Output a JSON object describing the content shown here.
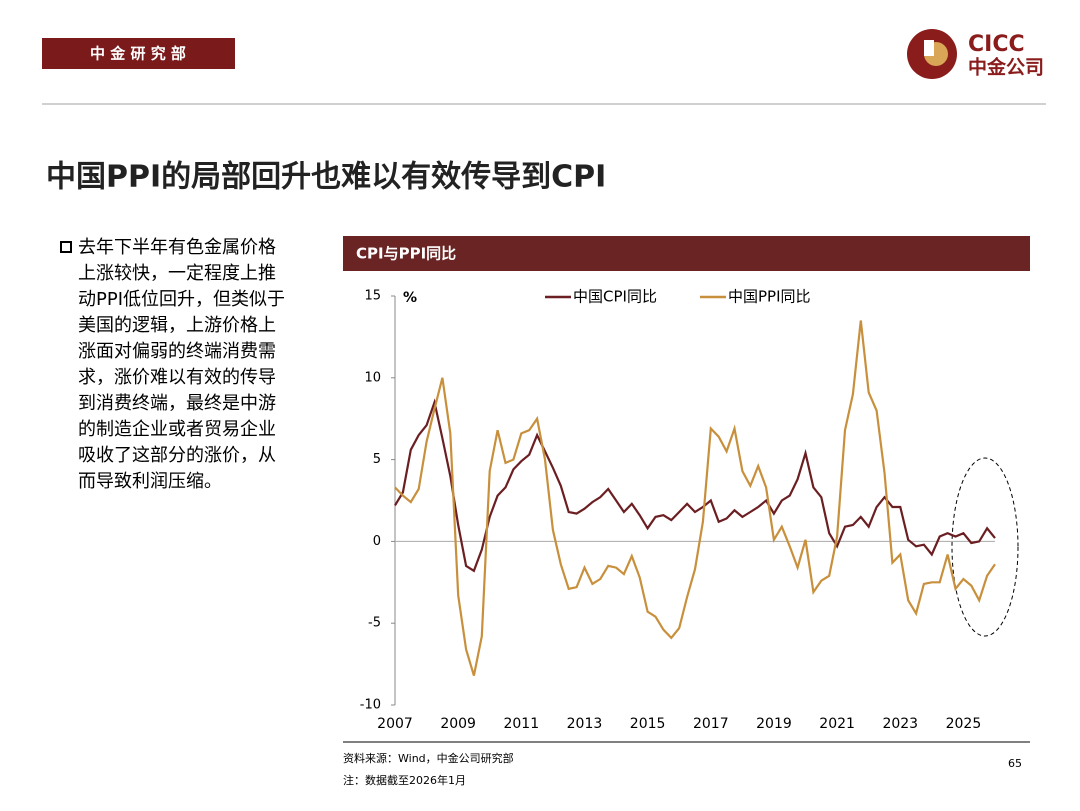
{
  "header": {
    "tag": "中 金 研 究 部",
    "logo_en": "CICC",
    "logo_cn": "中金公司",
    "title": "中国PPI的局部回升也难以有效传导到CPI"
  },
  "bullet": {
    "lines": [
      "去年下半年有色金属价格",
      "上涨较快，一定程度上推",
      "动PPI低位回升，但类似于",
      "美国的逻辑，上游价格上",
      "涨面对偏弱的终端消费需",
      "求，涨价难以有效的传导",
      "到消费终端，最终是中游",
      "的制造企业或者贸易企业",
      "吸收了这部分的涨价，从",
      "而导致利润压缩。"
    ]
  },
  "footer": {
    "source": "资料来源：Wind，中金公司研究部",
    "note": "注：数据截至2026年1月",
    "page": "65"
  },
  "chart_data": {
    "type": "line",
    "title": "CPI与PPI同比",
    "y_unit": "%",
    "legend": "top",
    "xlim": [
      2007,
      2026
    ],
    "xticks": [
      2007,
      2009,
      2011,
      2013,
      2015,
      2017,
      2019,
      2021,
      2023,
      2025
    ],
    "ylim": [
      -10,
      15
    ],
    "yticks": [
      -10,
      -5,
      0,
      5,
      10,
      15
    ],
    "x": [
      2007,
      2007.25,
      2007.5,
      2007.75,
      2008,
      2008.25,
      2008.5,
      2008.75,
      2009,
      2009.25,
      2009.5,
      2009.75,
      2010,
      2010.25,
      2010.5,
      2010.75,
      2011,
      2011.25,
      2011.5,
      2011.75,
      2012,
      2012.25,
      2012.5,
      2012.75,
      2013,
      2013.25,
      2013.5,
      2013.75,
      2014,
      2014.25,
      2014.5,
      2014.75,
      2015,
      2015.25,
      2015.5,
      2015.75,
      2016,
      2016.25,
      2016.5,
      2016.75,
      2017,
      2017.25,
      2017.5,
      2017.75,
      2018,
      2018.25,
      2018.5,
      2018.75,
      2019,
      2019.25,
      2019.5,
      2019.75,
      2020,
      2020.25,
      2020.5,
      2020.75,
      2021,
      2021.25,
      2021.5,
      2021.75,
      2022,
      2022.25,
      2022.5,
      2022.75,
      2023,
      2023.25,
      2023.5,
      2023.75,
      2024,
      2024.25,
      2024.5,
      2024.75,
      2025,
      2025.25,
      2025.5,
      2025.75,
      2026
    ],
    "series": [
      {
        "name": "中国CPI同比",
        "color": "#6b1f22",
        "values": [
          2.2,
          3.0,
          5.6,
          6.5,
          7.1,
          8.5,
          6.3,
          4.0,
          1.0,
          -1.5,
          -1.8,
          -0.5,
          1.5,
          2.8,
          3.3,
          4.4,
          4.9,
          5.3,
          6.5,
          5.5,
          4.5,
          3.4,
          1.8,
          1.7,
          2.0,
          2.4,
          2.7,
          3.2,
          2.5,
          1.8,
          2.3,
          1.6,
          0.8,
          1.5,
          1.6,
          1.3,
          1.8,
          2.3,
          1.8,
          2.1,
          2.5,
          1.2,
          1.4,
          1.9,
          1.5,
          1.8,
          2.1,
          2.5,
          1.7,
          2.5,
          2.8,
          3.8,
          5.4,
          3.3,
          2.7,
          0.5,
          -0.3,
          0.9,
          1.0,
          1.5,
          0.9,
          2.1,
          2.7,
          2.1,
          2.1,
          0.1,
          -0.3,
          -0.2,
          -0.8,
          0.3,
          0.5,
          0.3,
          0.5,
          -0.1,
          0.0,
          0.8,
          0.2
        ]
      },
      {
        "name": "中国PPI同比",
        "color": "#c8903c",
        "values": [
          3.3,
          2.8,
          2.4,
          3.2,
          6.1,
          8.1,
          10.0,
          6.6,
          -3.3,
          -6.6,
          -8.2,
          -5.8,
          4.3,
          6.8,
          4.8,
          5.0,
          6.6,
          6.8,
          7.5,
          5.0,
          0.7,
          -1.4,
          -2.9,
          -2.8,
          -1.6,
          -2.6,
          -2.3,
          -1.5,
          -1.6,
          -2.0,
          -0.9,
          -2.2,
          -4.3,
          -4.6,
          -5.4,
          -5.9,
          -5.3,
          -3.4,
          -1.7,
          1.2,
          6.9,
          6.4,
          5.5,
          6.9,
          4.3,
          3.4,
          4.6,
          3.3,
          0.1,
          0.9,
          -0.3,
          -1.6,
          0.1,
          -3.1,
          -2.4,
          -2.1,
          0.3,
          6.8,
          9.0,
          13.5,
          9.1,
          8.0,
          4.2,
          -1.3,
          -0.8,
          -3.6,
          -4.4,
          -2.6,
          -2.5,
          -2.5,
          -0.8,
          -2.9,
          -2.3,
          -2.7,
          -3.6,
          -2.1,
          -1.4
        ]
      }
    ]
  }
}
